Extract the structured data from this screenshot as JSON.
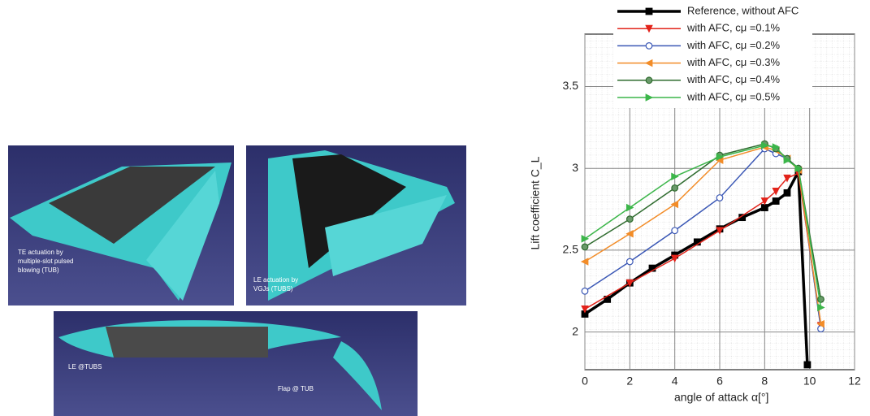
{
  "images": {
    "panels": [
      {
        "labels": [
          "TE actuation by",
          "multiple-slot pulsed",
          "blowing (TUB)"
        ]
      },
      {
        "labels": [
          "LE actuation by",
          "VGJs (TUBS)"
        ]
      },
      {
        "labels": [
          "LE @TUBS",
          "Flap @ TUB"
        ]
      }
    ]
  },
  "chart_data": {
    "type": "line",
    "x_label": "angle of attack α[°]",
    "y_label": "Lift coefficient C_L",
    "xlim": [
      0,
      12
    ],
    "xticks": [
      0,
      2,
      4,
      6,
      8,
      10,
      12
    ],
    "ylim": [
      1.77,
      3.82
    ],
    "yticks": [
      2,
      2.5,
      3,
      3.5
    ],
    "grid": true,
    "legend": "top",
    "series": [
      {
        "name": "Reference, without AFC",
        "color": "#000000",
        "marker": "square",
        "width": 3.5,
        "x": [
          0,
          1,
          2,
          3,
          4,
          5,
          6,
          7,
          8,
          8.5,
          9,
          9.5,
          9.9
        ],
        "values": [
          2.11,
          2.2,
          2.3,
          2.39,
          2.47,
          2.55,
          2.63,
          2.7,
          2.76,
          2.8,
          2.85,
          2.98,
          1.8
        ]
      },
      {
        "name": "with AFC, cμ =0.1%",
        "color": "#e2231a",
        "marker": "triangle-down",
        "width": 1.5,
        "x": [
          0,
          2,
          4,
          6,
          8,
          8.5,
          9,
          9.5,
          10.5
        ],
        "values": [
          2.14,
          2.3,
          2.45,
          2.62,
          2.8,
          2.86,
          2.94,
          2.97,
          2.04
        ]
      },
      {
        "name": "with AFC, cμ =0.2%",
        "color": "#3a57b5",
        "marker": "circle-open",
        "width": 1.5,
        "x": [
          0,
          2,
          4,
          6,
          8,
          8.5,
          9,
          9.5,
          10.5
        ],
        "values": [
          2.25,
          2.43,
          2.62,
          2.82,
          3.12,
          3.09,
          3.06,
          3.0,
          2.02
        ]
      },
      {
        "name": "with AFC, cμ =0.3%",
        "color": "#f28c28",
        "marker": "triangle-left",
        "width": 1.5,
        "x": [
          0,
          2,
          4,
          6,
          8,
          8.5,
          9,
          9.5,
          10.5
        ],
        "values": [
          2.43,
          2.6,
          2.78,
          3.05,
          3.13,
          3.11,
          3.06,
          2.99,
          2.05
        ]
      },
      {
        "name": "with AFC, cμ =0.4%",
        "color": "#2e6b2e",
        "marker": "circle",
        "width": 1.5,
        "x": [
          0,
          2,
          4,
          6,
          8,
          8.5,
          9,
          9.5,
          10.5
        ],
        "values": [
          2.52,
          2.69,
          2.88,
          3.08,
          3.15,
          3.12,
          3.06,
          3.0,
          2.2
        ]
      },
      {
        "name": "with AFC, cμ =0.5%",
        "color": "#3cb64a",
        "marker": "triangle-right",
        "width": 1.5,
        "x": [
          0,
          2,
          4,
          6,
          8,
          8.5,
          9,
          9.5,
          10.5
        ],
        "values": [
          2.57,
          2.76,
          2.95,
          3.07,
          3.14,
          3.13,
          3.05,
          3.0,
          2.15
        ]
      }
    ]
  }
}
